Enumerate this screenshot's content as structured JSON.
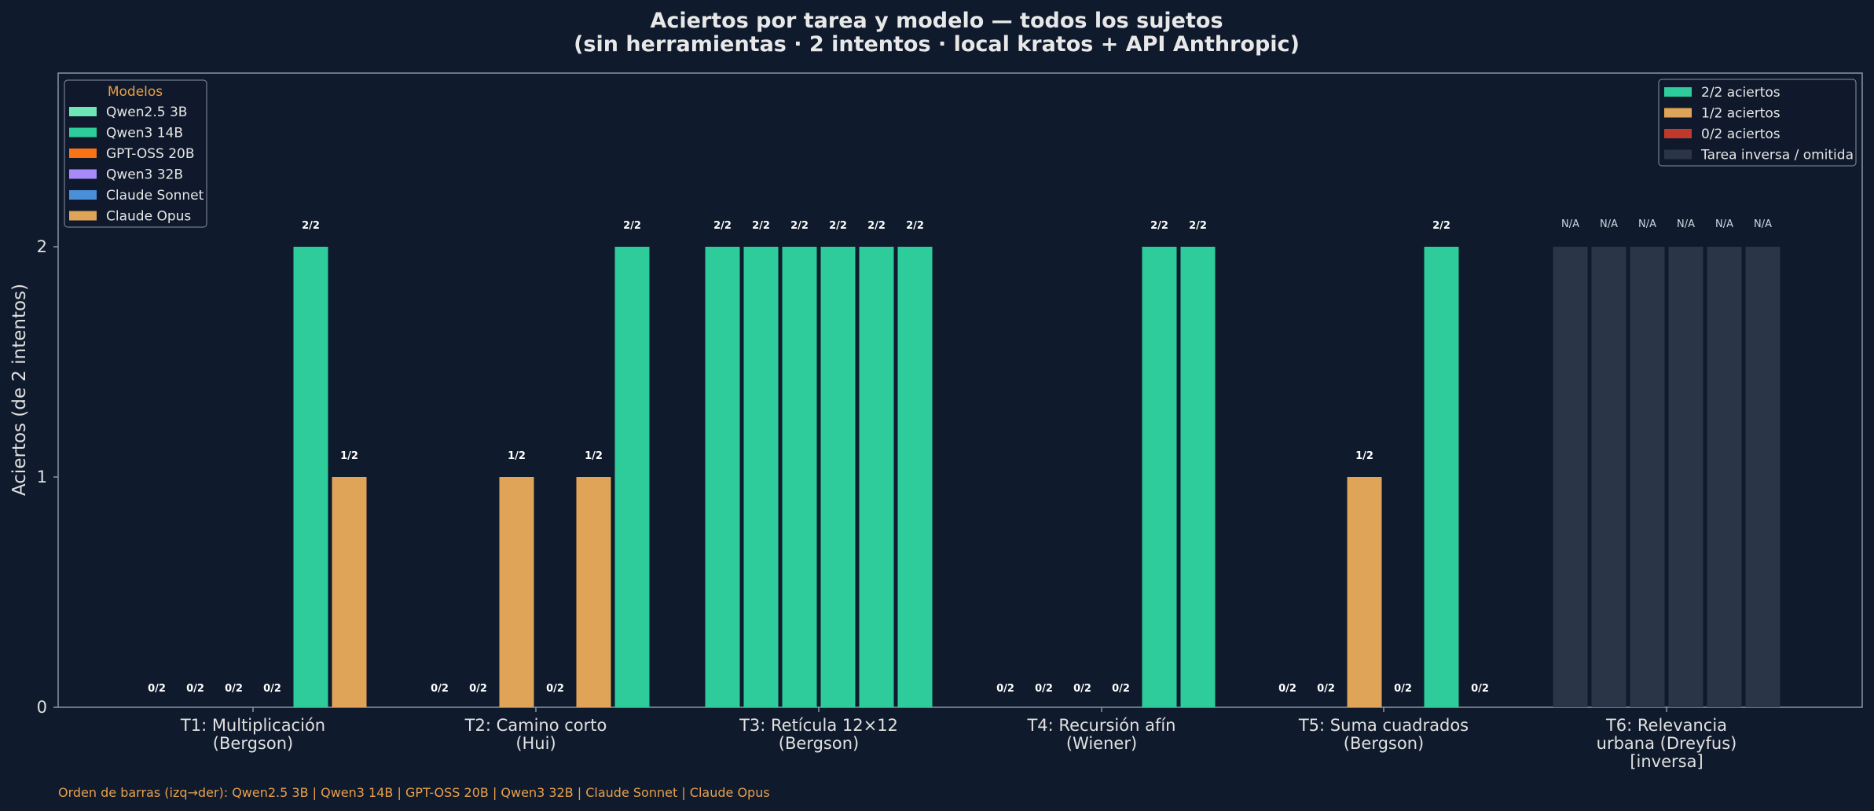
{
  "chart_data": {
    "type": "bar",
    "title": "Aciertos por tarea y modelo — todos los sujetos",
    "subtitle": "(sin herramientas · 2 intentos · local kratos + API Anthropic)",
    "ylabel": "Aciertos (de 2 intentos)",
    "ylim": [
      0,
      2.75
    ],
    "yticks": [
      0,
      1,
      2
    ],
    "grid": false,
    "categories": [
      [
        "T1: Multiplicación",
        "(Bergson)"
      ],
      [
        "T2: Camino corto",
        "(Hui)"
      ],
      [
        "T3: Retícula 12×12",
        "(Bergson)"
      ],
      [
        "T4: Recursión afín",
        "(Wiener)"
      ],
      [
        "T5: Suma cuadrados",
        "(Bergson)"
      ],
      [
        "T6: Relevancia",
        "urbana (Dreyfus)",
        "[inversa]"
      ]
    ],
    "series": [
      {
        "name": "Qwen2.5 3B",
        "values": [
          0,
          0,
          2,
          0,
          0,
          null
        ]
      },
      {
        "name": "Qwen3 14B",
        "values": [
          0,
          0,
          2,
          0,
          0,
          null
        ]
      },
      {
        "name": "GPT-OSS 20B",
        "values": [
          0,
          1,
          2,
          0,
          1,
          null
        ]
      },
      {
        "name": "Qwen3 32B",
        "values": [
          0,
          0,
          2,
          0,
          0,
          null
        ]
      },
      {
        "name": "Claude Sonnet",
        "values": [
          2,
          1,
          2,
          2,
          2,
          null
        ]
      },
      {
        "name": "Claude Opus",
        "values": [
          1,
          2,
          2,
          2,
          0,
          null
        ]
      }
    ],
    "na_placeholder_value": 2,
    "na_label": "N/A",
    "legend_models": {
      "title": "Modelos",
      "placement": "top-left",
      "entries": [
        {
          "label": "Qwen2.5 3B",
          "color": "#6ee7b7"
        },
        {
          "label": "Qwen3 14B",
          "color": "#2ecc9a"
        },
        {
          "label": "GPT-OSS 20B",
          "color": "#f97316"
        },
        {
          "label": "Qwen3 32B",
          "color": "#a78bfa"
        },
        {
          "label": "Claude Sonnet",
          "color": "#4a90d9"
        },
        {
          "label": "Claude Opus",
          "color": "#e0a458"
        }
      ]
    },
    "legend_scores": {
      "placement": "top-right",
      "entries": [
        {
          "label": "2/2 aciertos",
          "color": "#2ecc9a"
        },
        {
          "label": "1/2 aciertos",
          "color": "#e0a458"
        },
        {
          "label": "0/2 aciertos",
          "color": "#c0392b"
        },
        {
          "label": "Tarea inversa / omitida",
          "color": "#2a3548"
        }
      ]
    },
    "footnote": "Orden de barras (izq→der): Qwen2.5 3B | Qwen3 14B | GPT-OSS 20B | Qwen3 32B | Claude Sonnet | Claude Opus",
    "colors": {
      "background": "#0f1a2c",
      "score_2": "#2ecc9a",
      "score_1": "#e0a458",
      "score_0": "#c0392b",
      "na": "#2a3548",
      "axis": "#8a94a6"
    }
  }
}
